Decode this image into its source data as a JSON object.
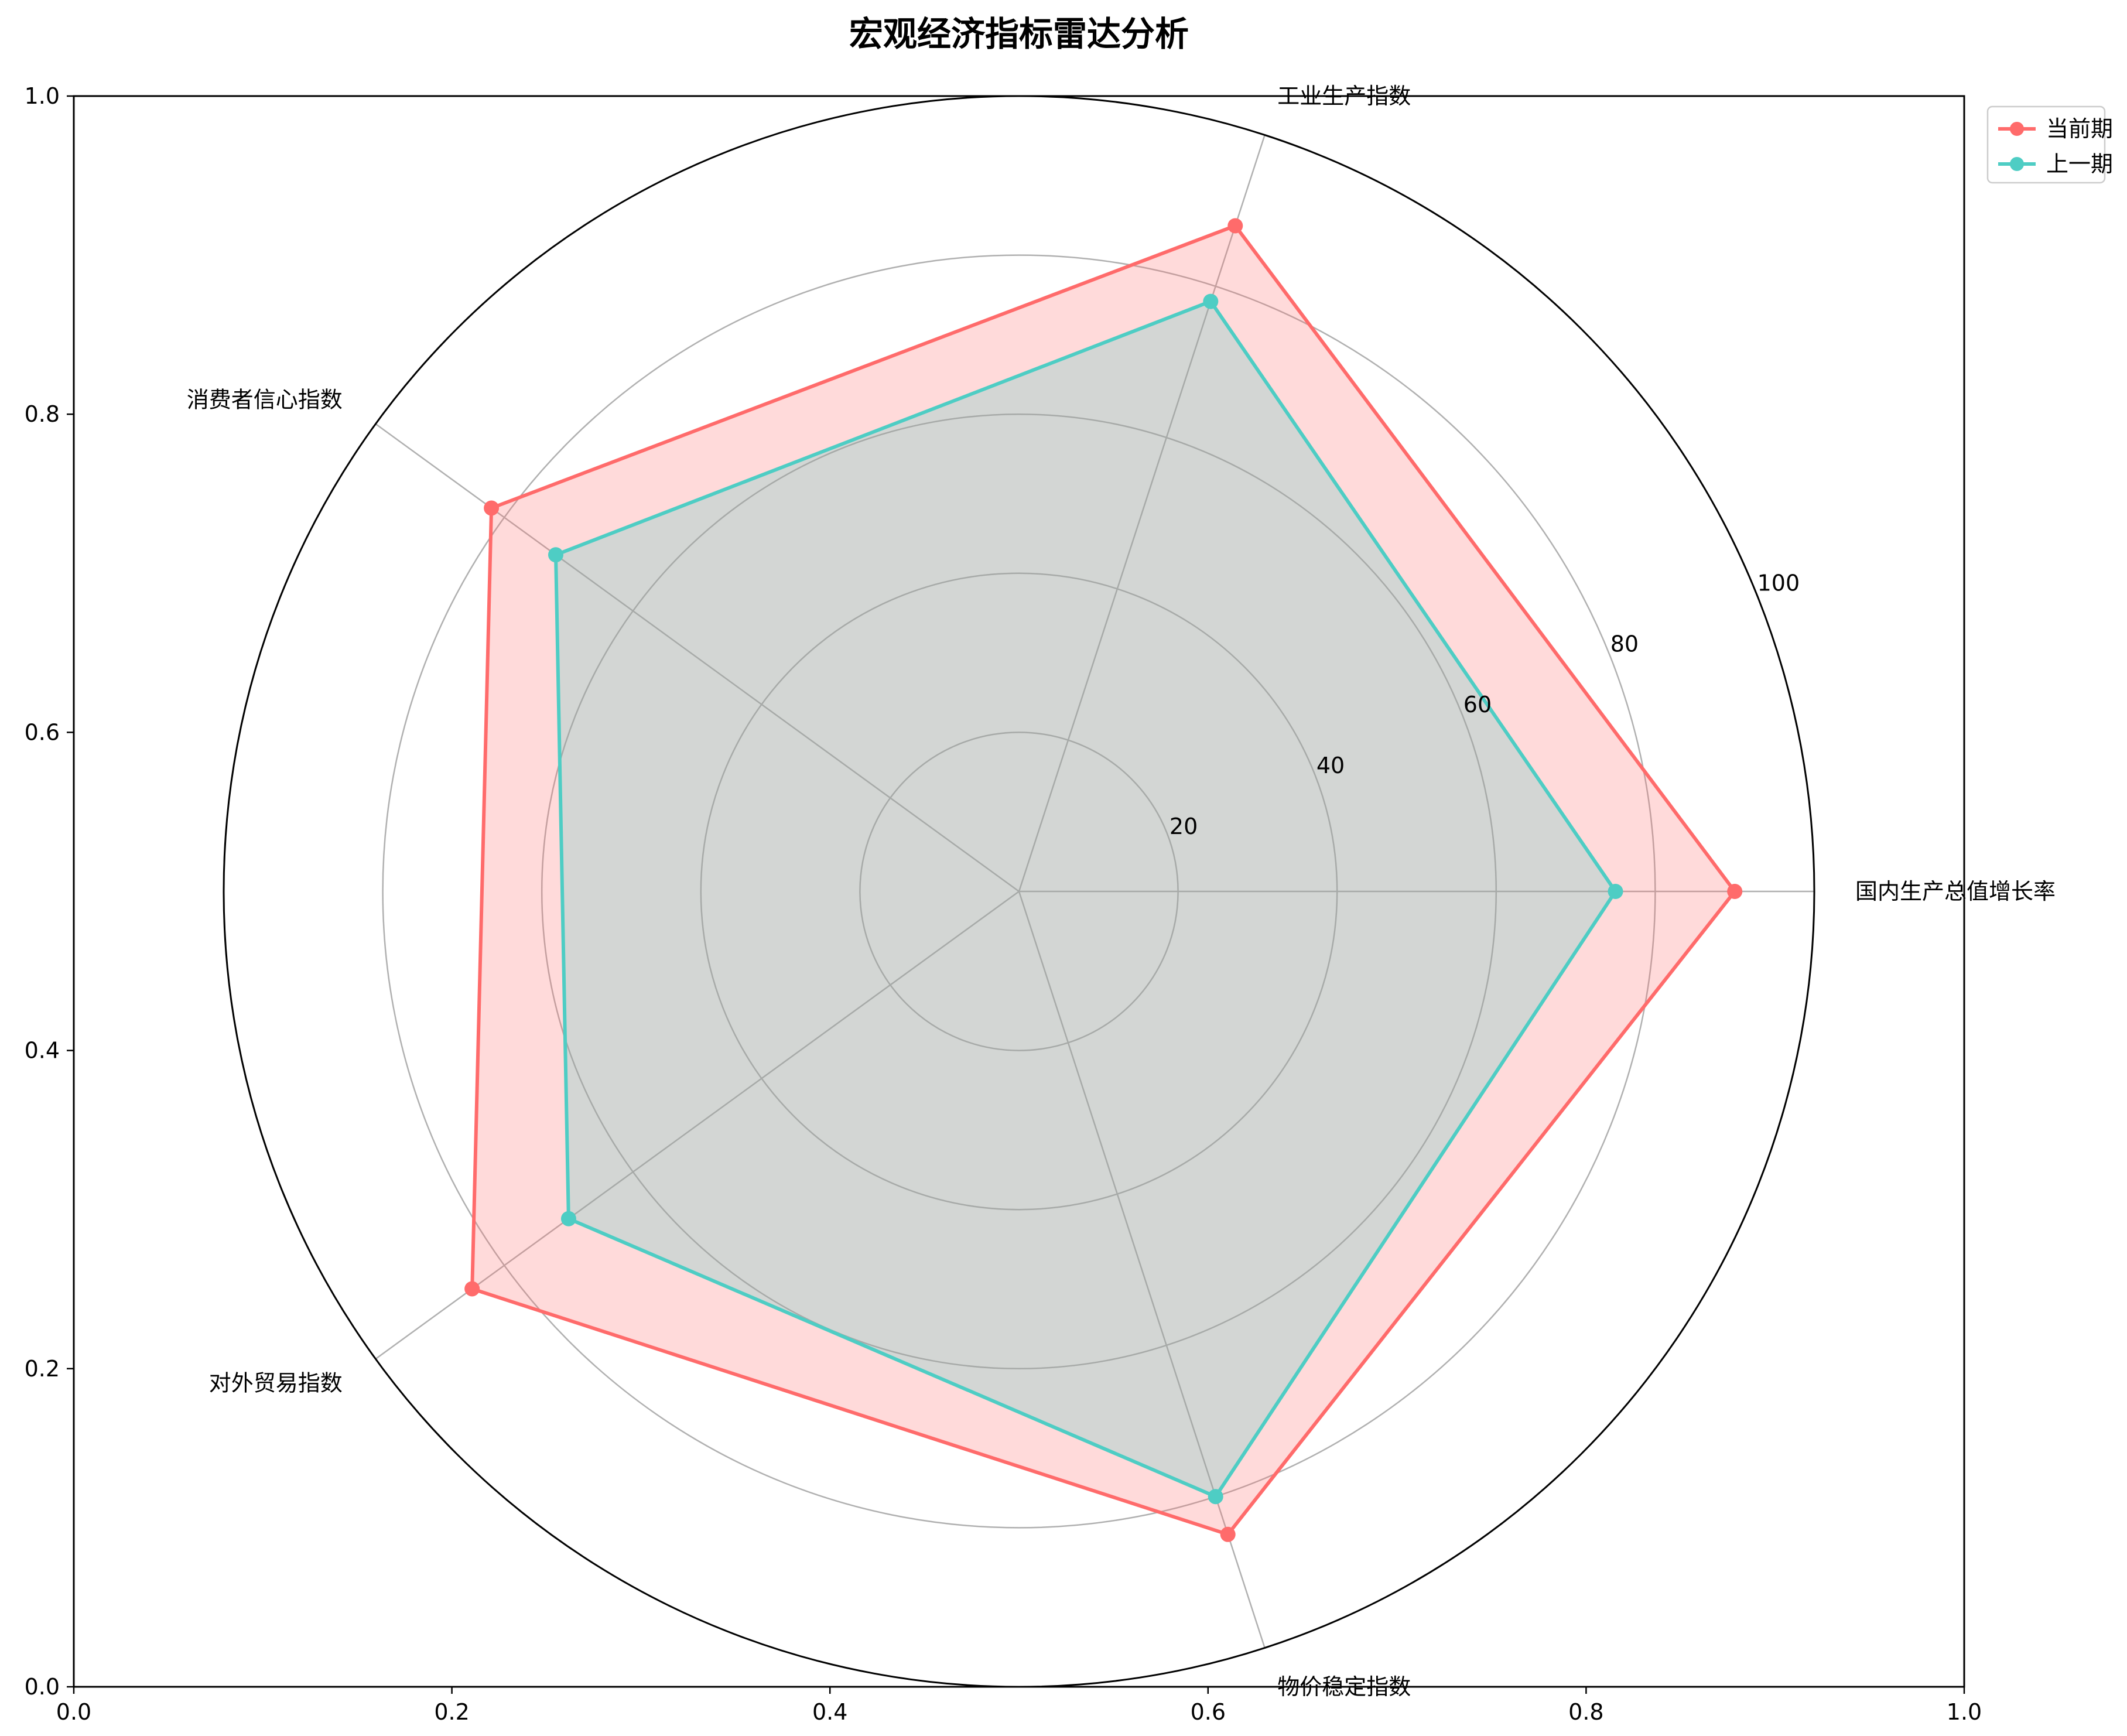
{
  "chart_data": {
    "type": "radar",
    "title": "宏观经济指标雷达分析",
    "categories": [
      "国内生产总值增长率",
      "工业生产指数",
      "消费者信心指数",
      "对外贸易指数",
      "物价稳定指数"
    ],
    "r_ticks": [
      "20",
      "40",
      "60",
      "80",
      "100"
    ],
    "r_range": [
      0,
      100
    ],
    "series": [
      {
        "name": "当前期",
        "color": "#FF6B6B",
        "fill": "#FF6B6B",
        "values": [
          90,
          88,
          82,
          85,
          85
        ]
      },
      {
        "name": "上一期",
        "color": "#4ECDC4",
        "fill": "#4ECDC4",
        "values": [
          75,
          78,
          72,
          70,
          80
        ]
      }
    ],
    "legend_position": "top-right",
    "frame_axes": {
      "x_ticks": [
        "0.0",
        "0.2",
        "0.4",
        "0.6",
        "0.8",
        "1.0"
      ],
      "y_ticks": [
        "0.0",
        "0.2",
        "0.4",
        "0.6",
        "0.8",
        "1.0"
      ],
      "xlim": [
        0,
        1
      ],
      "ylim": [
        0,
        1
      ]
    },
    "grid": true
  }
}
